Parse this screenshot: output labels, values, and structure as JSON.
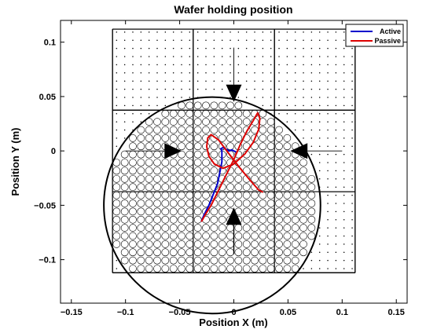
{
  "chart_data": {
    "type": "line",
    "title": "Wafer holding position",
    "xlabel": "Position X (m)",
    "ylabel": "Position Y (m)",
    "xlim": [
      -0.16,
      0.16
    ],
    "ylim": [
      -0.14,
      0.12
    ],
    "xticks": [
      -0.15,
      -0.1,
      -0.05,
      0,
      0.05,
      0.1,
      0.15
    ],
    "xtick_labels": [
      "−0.15",
      "−0.1",
      "−0.05",
      "0",
      "0.05",
      "0.1",
      "0.15"
    ],
    "yticks": [
      -0.1,
      -0.05,
      0,
      0.05,
      0.1
    ],
    "ytick_labels": [
      "−0.1",
      "−0.05",
      "0",
      "0.05",
      "0.1"
    ],
    "legend_position": "top-right",
    "grid": false,
    "tiles": {
      "edges": [
        -0.112,
        -0.0375,
        0.0375,
        0.112
      ],
      "dot_pitch": 0.0075
    },
    "wafer": {
      "center": [
        -0.02,
        -0.05
      ],
      "radius": 0.1,
      "hole_pitch": 0.0075,
      "hole_radius": 0.0033
    },
    "arrows": [
      {
        "from": [
          0,
          0.095
        ],
        "to": [
          0,
          0.045
        ],
        "weight": "thin"
      },
      {
        "from": [
          -0.1,
          0
        ],
        "to": [
          -0.048,
          0
        ],
        "weight": "thin"
      },
      {
        "from": [
          0.1,
          0
        ],
        "to": [
          0.052,
          0
        ],
        "weight": "thin"
      },
      {
        "from": [
          0,
          -0.095
        ],
        "to": [
          0,
          -0.052
        ],
        "weight": "bold"
      }
    ],
    "series": [
      {
        "name": "Active",
        "color": "#0000cc",
        "x": [
          -0.03,
          -0.028,
          -0.025,
          -0.023,
          -0.021,
          -0.019,
          -0.017,
          -0.015,
          -0.014,
          -0.013,
          -0.012,
          -0.011,
          -0.011,
          -0.011,
          -0.012,
          -0.01,
          -0.008,
          -0.006,
          -0.004,
          -0.002,
          0,
          0.002
        ],
        "y": [
          -0.065,
          -0.06,
          -0.054,
          -0.05,
          -0.045,
          -0.04,
          -0.035,
          -0.03,
          -0.025,
          -0.02,
          -0.015,
          -0.01,
          -0.005,
          0,
          0.002,
          0.003,
          0.002,
          0.001,
          0.0,
          0.001,
          0.0,
          -0.001
        ]
      },
      {
        "name": "Passive",
        "color": "#dd0000",
        "x": [
          -0.03,
          -0.026,
          -0.021,
          -0.016,
          -0.011,
          -0.006,
          0.0,
          0.006,
          0.012,
          0.018,
          0.022,
          0.024,
          0.023,
          0.018,
          0.01,
          0.0,
          -0.01,
          -0.018,
          -0.023,
          -0.025,
          -0.024,
          -0.021,
          -0.014,
          -0.005,
          0.005,
          0.015,
          0.023,
          0.027
        ],
        "y": [
          -0.065,
          -0.058,
          -0.05,
          -0.04,
          -0.03,
          -0.02,
          -0.008,
          0.006,
          0.018,
          0.028,
          0.035,
          0.03,
          0.02,
          0.008,
          -0.003,
          -0.012,
          -0.016,
          -0.012,
          -0.005,
          0.004,
          0.012,
          0.015,
          0.01,
          -0.002,
          -0.015,
          -0.027,
          -0.036,
          -0.038
        ]
      }
    ]
  }
}
